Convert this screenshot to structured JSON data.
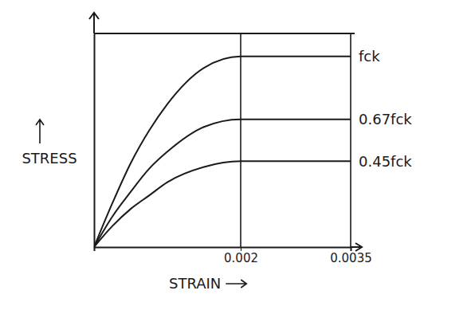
{
  "chart_data": {
    "type": "line",
    "xlabel": "STRAIN",
    "ylabel": "STRESS",
    "x": [
      0,
      0.00025,
      0.0005,
      0.00075,
      0.001,
      0.0015,
      0.002,
      0.0035
    ],
    "series": [
      {
        "name": "fck",
        "color": "#1a1a1a",
        "values": [
          0,
          0.23,
          0.44,
          0.61,
          0.75,
          0.94,
          1,
          1
        ]
      },
      {
        "name": "0.67fck",
        "color": "#1a1a1a",
        "values": [
          0,
          0.16,
          0.29,
          0.41,
          0.5,
          0.63,
          0.67,
          0.67
        ]
      },
      {
        "name": "0.45fck",
        "color": "#1a1a1a",
        "values": [
          0,
          0.11,
          0.2,
          0.27,
          0.34,
          0.42,
          0.45,
          0.45
        ]
      }
    ],
    "xlim": [
      0,
      0.0035
    ],
    "ylim": [
      0,
      1.12
    ],
    "xticks": [
      0.002,
      0.0035
    ],
    "yticks": [],
    "grid": true,
    "tick_labels": "x"
  }
}
